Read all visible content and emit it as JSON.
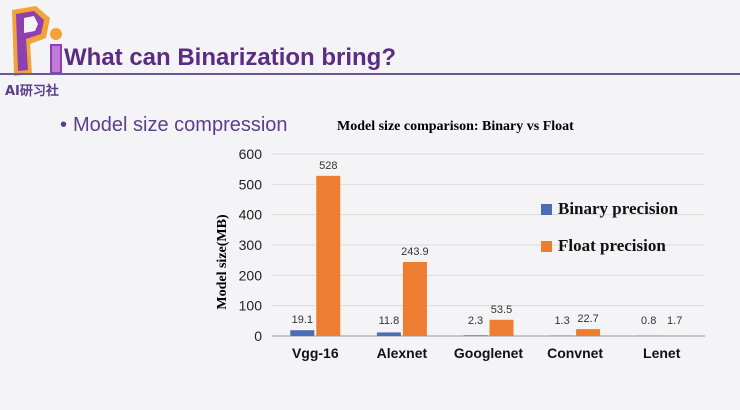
{
  "slide": {
    "logo_text": "AI研习社",
    "title": "What can Binarization bring?",
    "bullet": "Model size compression"
  },
  "colors": {
    "binary": "#4a6db5",
    "float": "#ed7d31",
    "title": "#5b2c83"
  },
  "chart_data": {
    "type": "bar",
    "title": "Model size comparison: Binary vs Float",
    "xlabel": "",
    "ylabel": "Model size(MB)",
    "ylim": [
      0,
      600
    ],
    "yticks": [
      0,
      100,
      200,
      300,
      400,
      500,
      600
    ],
    "grid": true,
    "legend": "right",
    "categories": [
      "Vgg-16",
      "Alexnet",
      "Googlenet",
      "Convnet",
      "Lenet"
    ],
    "series": [
      {
        "name": "Binary precision",
        "values": [
          19.1,
          11.8,
          2.3,
          1.3,
          0.8
        ],
        "labels": [
          "19.1",
          "11.8",
          "2.3",
          "1.3",
          "0.8"
        ]
      },
      {
        "name": "Float precision",
        "values": [
          528,
          243.9,
          53.5,
          22.7,
          1.7
        ],
        "labels": [
          "528",
          "243.9",
          "53.5",
          "22.7",
          "1.7"
        ]
      }
    ]
  }
}
